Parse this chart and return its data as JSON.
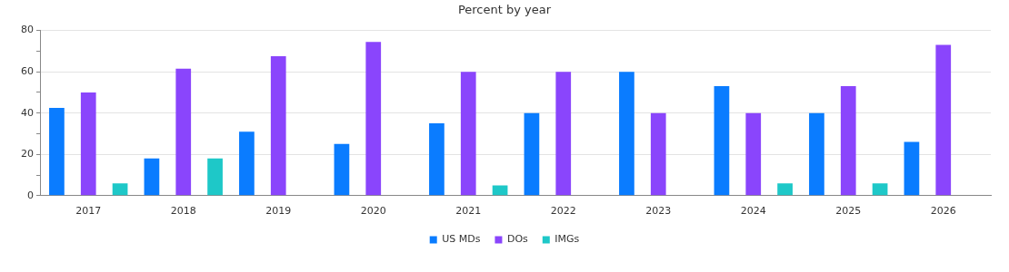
{
  "chart_data": {
    "type": "bar",
    "title": "Percent by year",
    "categories": [
      "2017",
      "2018",
      "2019",
      "2020",
      "2021",
      "2022",
      "2023",
      "2024",
      "2025",
      "2026"
    ],
    "series": [
      {
        "name": "US MDs",
        "color": "#0a7cff",
        "values": [
          42.5,
          18,
          31,
          25,
          35,
          40,
          60,
          53,
          40,
          26
        ]
      },
      {
        "name": "DOs",
        "color": "#8a45fc",
        "values": [
          50,
          61.5,
          67.5,
          74.5,
          60,
          60,
          40,
          40,
          53,
          73
        ]
      },
      {
        "name": "IMGs",
        "color": "#1ec8c8",
        "values": [
          6,
          18,
          0,
          0,
          5,
          0,
          0,
          6,
          6,
          0
        ]
      }
    ],
    "ylim": [
      0,
      80
    ],
    "yticks": [
      0,
      {
        "value": 10,
        "label": null
      },
      20,
      {
        "value": 30,
        "label": null
      },
      40,
      {
        "value": 50,
        "label": null
      },
      60,
      {
        "value": 70,
        "label": null
      },
      80
    ],
    "grid": "y",
    "legend": "bottom"
  }
}
